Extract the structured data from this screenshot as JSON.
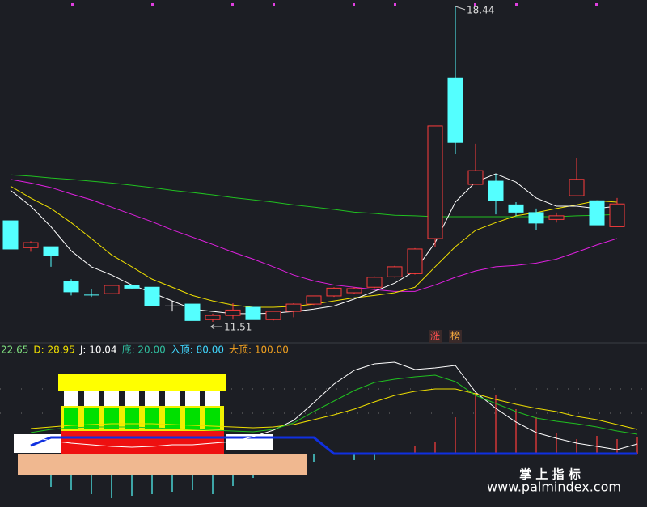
{
  "chart_data": [
    {
      "type": "candlestick",
      "categories": [
        null,
        null,
        null,
        null,
        null,
        null,
        null,
        null,
        null,
        null,
        null,
        null,
        null,
        null,
        null,
        null,
        null,
        null,
        null,
        null,
        null,
        null,
        null,
        null,
        null,
        null,
        null,
        null,
        null,
        null,
        null
      ],
      "open": [
        13.73,
        13.14,
        13.16,
        12.4,
        12.1,
        12.13,
        12.31,
        12.27,
        11.86,
        11.9,
        11.56,
        11.65,
        11.83,
        11.56,
        11.74,
        11.9,
        12.08,
        12.15,
        12.27,
        12.5,
        12.57,
        13.34,
        16.87,
        14.53,
        14.6,
        14.08,
        13.91,
        13.76,
        14.28,
        14.17,
        13.6
      ],
      "high": [
        13.73,
        13.28,
        13.16,
        12.45,
        12.24,
        12.31,
        12.33,
        12.27,
        11.97,
        11.9,
        11.69,
        11.92,
        11.83,
        11.74,
        11.92,
        12.08,
        12.27,
        12.27,
        12.51,
        12.74,
        13.13,
        15.81,
        18.44,
        15.42,
        14.76,
        14.14,
        14.0,
        13.91,
        15.11,
        14.17,
        14.23
      ],
      "low": [
        13.11,
        13.05,
        12.72,
        12.09,
        12.06,
        12.13,
        12.24,
        11.86,
        11.74,
        11.54,
        11.51,
        11.56,
        11.56,
        11.54,
        11.61,
        11.88,
        12.06,
        12.13,
        12.25,
        12.48,
        12.55,
        13.16,
        15.2,
        14.53,
        13.87,
        13.84,
        13.52,
        13.69,
        14.28,
        13.64,
        13.6
      ],
      "close": [
        13.11,
        13.25,
        12.96,
        12.17,
        12.09,
        12.31,
        12.25,
        11.86,
        11.86,
        11.54,
        11.65,
        11.77,
        11.56,
        11.74,
        11.9,
        12.08,
        12.25,
        12.24,
        12.49,
        12.72,
        13.11,
        15.81,
        15.45,
        14.83,
        14.17,
        13.92,
        13.68,
        13.84,
        14.64,
        13.64,
        14.1
      ],
      "up_color": "#ff3c3c",
      "down_color": "#54ffff",
      "flat_color": "#ffffff",
      "lines": [
        {
          "color": "#ffffff",
          "values": [
            14.4,
            14.05,
            13.6,
            13.07,
            12.72,
            12.54,
            12.32,
            12.15,
            11.97,
            11.79,
            11.74,
            11.69,
            11.69,
            11.7,
            11.74,
            11.79,
            11.86,
            12.01,
            12.18,
            12.36,
            12.63,
            13.25,
            14.14,
            14.58,
            14.76,
            14.58,
            14.23,
            14.05,
            14.05,
            14.0,
            14.05
          ]
        },
        {
          "color": "#f0e000",
          "values": [
            14.49,
            14.23,
            14.0,
            13.69,
            13.34,
            12.98,
            12.72,
            12.45,
            12.27,
            12.09,
            11.97,
            11.88,
            11.83,
            11.83,
            11.85,
            11.9,
            11.97,
            12.04,
            12.09,
            12.15,
            12.27,
            12.72,
            13.16,
            13.52,
            13.69,
            13.84,
            13.91,
            14.0,
            14.08,
            14.17,
            14.14
          ]
        },
        {
          "color": "#e020e0",
          "values": [
            14.64,
            14.56,
            14.46,
            14.32,
            14.19,
            14.03,
            13.87,
            13.71,
            13.53,
            13.37,
            13.21,
            13.04,
            12.89,
            12.72,
            12.54,
            12.41,
            12.32,
            12.27,
            12.22,
            12.18,
            12.18,
            12.32,
            12.49,
            12.63,
            12.72,
            12.75,
            12.8,
            12.89,
            13.04,
            13.2,
            13.34
          ]
        },
        {
          "color": "#20c020",
          "values": [
            14.74,
            14.71,
            14.67,
            14.64,
            14.6,
            14.56,
            14.51,
            14.46,
            14.4,
            14.35,
            14.3,
            14.24,
            14.19,
            14.14,
            14.08,
            14.03,
            13.98,
            13.92,
            13.89,
            13.85,
            13.84,
            13.82,
            13.82,
            13.82,
            13.82,
            13.82,
            13.82,
            13.82,
            13.84,
            13.85,
            13.87
          ]
        }
      ],
      "ylim": [
        11.12,
        18.58
      ],
      "signals": [
        "涨",
        "榜"
      ]
    },
    {
      "type": "indicator",
      "legend": [
        {
          "text": "22.65",
          "color": "#7fe07f"
        },
        {
          "text": "D: 28.95",
          "color": "#f0e000"
        },
        {
          "text": "J: 10.04",
          "color": "#ffffff"
        },
        {
          "text": "底: 20.00",
          "color": "#30c0a0"
        },
        {
          "text": "入顶: 80.00",
          "color": "#40d8ff"
        },
        {
          "text": "大顶: 100.00",
          "color": "#f0a020"
        }
      ],
      "series": [
        {
          "color": "#20c020",
          "values": [
            26,
            30,
            32,
            33,
            33,
            33,
            32,
            31,
            30,
            29,
            28,
            27,
            30,
            38,
            52,
            65,
            78,
            88,
            92,
            95,
            97,
            89,
            72,
            62,
            52,
            44,
            40,
            37,
            33,
            28,
            24
          ]
        },
        {
          "color": "#f0e000",
          "values": [
            31,
            33,
            35,
            36,
            37,
            37,
            37,
            36,
            35,
            34,
            33,
            32,
            33,
            36,
            42,
            48,
            55,
            64,
            72,
            77,
            80,
            80,
            74,
            67,
            61,
            56,
            52,
            46,
            42,
            36,
            30
          ]
        },
        {
          "color": "#ffffff",
          "values": [
            21,
            16,
            13,
            11,
            9,
            8,
            9,
            11,
            11,
            13,
            15,
            21,
            29,
            41,
            63,
            86,
            103,
            111,
            113,
            104,
            106,
            109,
            76,
            56,
            39,
            26,
            19,
            13,
            9,
            5,
            12
          ]
        },
        {
          "color": "#1030e0",
          "values": [
            10,
            20,
            20,
            20,
            20,
            20,
            20,
            20,
            20,
            20,
            20,
            20,
            20,
            20,
            20,
            0,
            0,
            0,
            0,
            0,
            0,
            0,
            0,
            0,
            0,
            0,
            0,
            0,
            0,
            0,
            0
          ]
        }
      ],
      "bars": {
        "values": [
          -20,
          -41,
          -45,
          -50,
          -55,
          -52,
          -50,
          -48,
          -45,
          -50,
          -40,
          -30,
          -20,
          -15,
          -10,
          0,
          -8,
          -8,
          0,
          10,
          15,
          45,
          75,
          72,
          55,
          45,
          25,
          18,
          22,
          18,
          20
        ],
        "up_color": "#ff3c3c",
        "down_color": "#54ffff"
      },
      "ylim": [
        -59,
        125
      ],
      "ref_lines": [
        80,
        50
      ]
    }
  ],
  "watermark": {
    "title": "掌 上 指 标",
    "url": "www.palmindex.com"
  }
}
